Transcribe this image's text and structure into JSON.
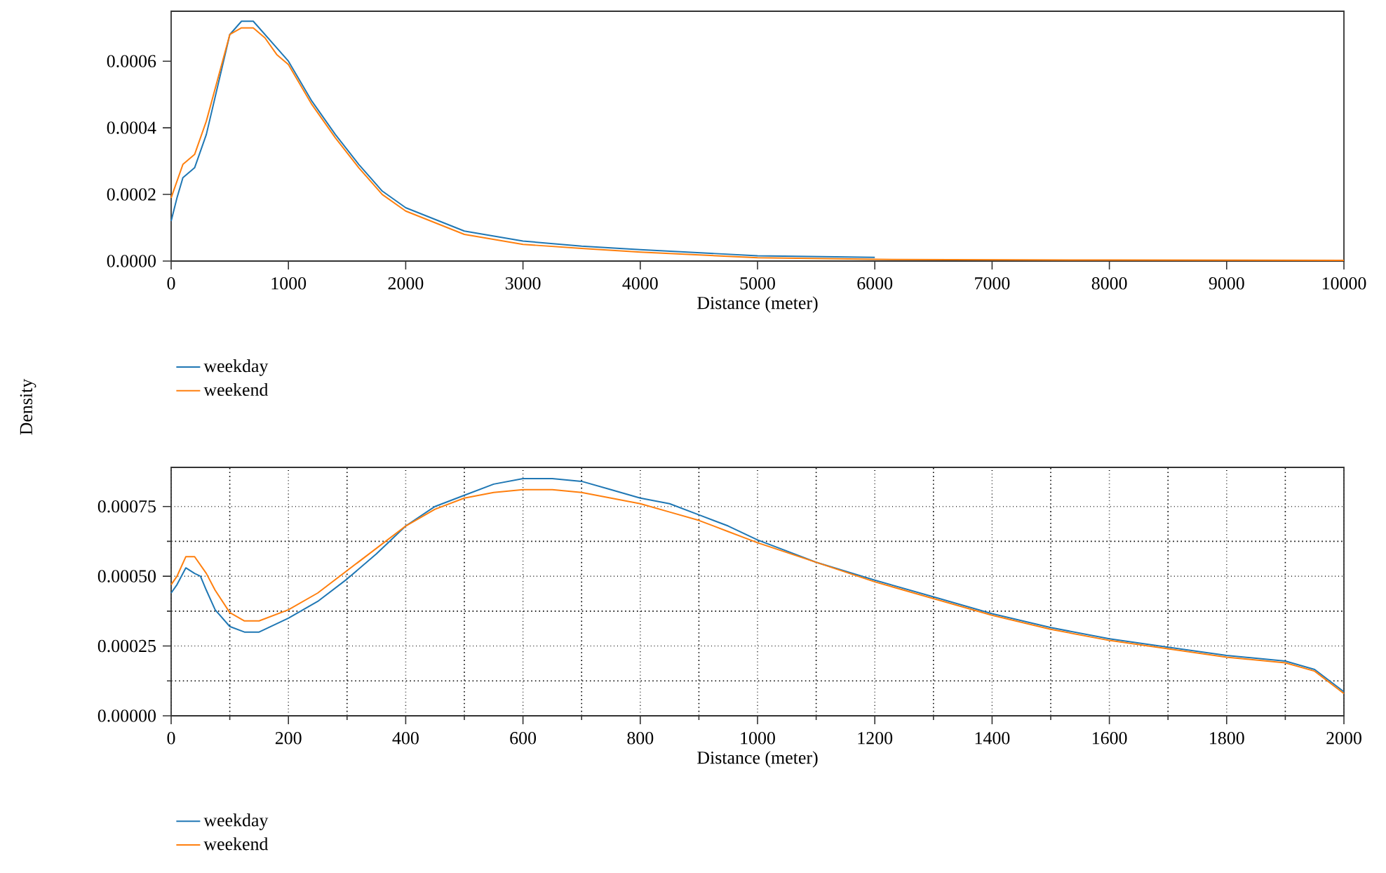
{
  "chart_data": [
    {
      "type": "line",
      "xlabel": "Distance (meter)",
      "xlim": [
        0,
        10000
      ],
      "ylim": [
        0,
        0.00075
      ],
      "xticks": [
        0,
        1000,
        2000,
        3000,
        4000,
        5000,
        6000,
        7000,
        8000,
        9000,
        10000
      ],
      "yticks": [
        {
          "value": 0,
          "label": "0.0000"
        },
        {
          "value": 0.0002,
          "label": "0.0002"
        },
        {
          "value": 0.0004,
          "label": "0.0004"
        },
        {
          "value": 0.0006,
          "label": "0.0006"
        }
      ],
      "grid": false,
      "legend": "bottom left",
      "x": [
        0,
        50,
        100,
        200,
        300,
        400,
        500,
        600,
        700,
        800,
        900,
        1000,
        1200,
        1400,
        1600,
        1800,
        2000,
        2500,
        3000,
        3500,
        4000,
        5000,
        6000,
        7000,
        8000,
        10000
      ],
      "series": [
        {
          "name": "weekday",
          "color": "#1f77b4",
          "values": [
            0.00012,
            0.00019,
            0.00025,
            0.00028,
            0.00038,
            0.00053,
            0.00068,
            0.00072,
            0.00072,
            0.00068,
            0.00064,
            0.0006,
            0.00048,
            0.00038,
            0.00029,
            0.00021,
            0.00016,
            9e-05,
            6e-05,
            4.5e-05,
            3.4e-05,
            1.6e-05,
            1.1e-05,
            null,
            null,
            null
          ]
        },
        {
          "name": "weekend",
          "color": "#ff7f0e",
          "values": [
            0.00019,
            0.00024,
            0.00029,
            0.00032,
            0.00042,
            0.00055,
            0.00068,
            0.0007,
            0.0007,
            0.00067,
            0.00062,
            0.00059,
            0.00047,
            0.00037,
            0.00028,
            0.0002,
            0.00015,
            8e-05,
            5e-05,
            3.8e-05,
            2.7e-05,
            1e-05,
            5e-06,
            4e-06,
            3e-06,
            2e-06
          ]
        }
      ]
    },
    {
      "type": "line",
      "xlabel": "Distance (meter)",
      "ylabel": "Density",
      "xlim": [
        0,
        2000
      ],
      "ylim": [
        0,
        0.00089
      ],
      "xticks": [
        0,
        200,
        400,
        600,
        800,
        1000,
        1200,
        1400,
        1600,
        1800,
        2000
      ],
      "yticks": [
        {
          "value": 0,
          "label": "0.00000"
        },
        {
          "value": 0.00025,
          "label": "0.00025"
        },
        {
          "value": 0.0005,
          "label": "0.00050"
        },
        {
          "value": 0.00075,
          "label": "0.00075"
        }
      ],
      "grid": true,
      "legend": "bottom left",
      "x": [
        0,
        10,
        25,
        40,
        50,
        60,
        75,
        100,
        125,
        150,
        200,
        250,
        300,
        350,
        400,
        450,
        500,
        550,
        600,
        650,
        700,
        750,
        800,
        850,
        900,
        950,
        1000,
        1100,
        1200,
        1300,
        1400,
        1500,
        1600,
        1700,
        1800,
        1900,
        1950,
        2000
      ],
      "series": [
        {
          "name": "weekday",
          "color": "#1f77b4",
          "values": [
            0.00044,
            0.00047,
            0.00053,
            0.00051,
            0.0005,
            0.00045,
            0.00038,
            0.00032,
            0.0003,
            0.0003,
            0.00035,
            0.00041,
            0.00049,
            0.00058,
            0.00068,
            0.00075,
            0.00079,
            0.00083,
            0.00085,
            0.00085,
            0.00084,
            0.00081,
            0.00078,
            0.00076,
            0.00072,
            0.00068,
            0.00063,
            0.00055,
            0.000486,
            0.000426,
            0.000366,
            0.000316,
            0.000276,
            0.000246,
            0.000216,
            0.000196,
            0.000166,
            8.6e-05
          ]
        },
        {
          "name": "weekend",
          "color": "#ff7f0e",
          "values": [
            0.00047,
            0.0005,
            0.00057,
            0.00057,
            0.00054,
            0.00051,
            0.00045,
            0.00037,
            0.00034,
            0.00034,
            0.00038,
            0.00044,
            0.00052,
            0.0006,
            0.00068,
            0.00074,
            0.00078,
            0.0008,
            0.00081,
            0.00081,
            0.0008,
            0.00078,
            0.00076,
            0.00073,
            0.0007,
            0.00066,
            0.00062,
            0.00055,
            0.00048,
            0.00042,
            0.00036,
            0.00031,
            0.00027,
            0.00024,
            0.00021,
            0.00019,
            0.00016,
            8e-05
          ]
        }
      ]
    }
  ]
}
